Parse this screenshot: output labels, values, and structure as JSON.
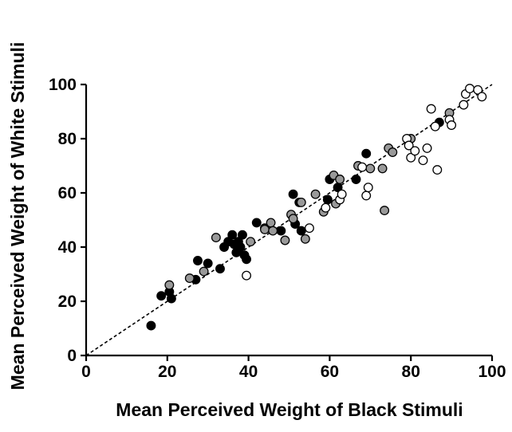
{
  "chart_data": {
    "type": "scatter",
    "xlabel": "Mean Perceived Weight of Black Stimuli",
    "ylabel": "Mean Perceived Weight of White Stimuli",
    "xlim": [
      0,
      100
    ],
    "ylim": [
      0,
      100
    ],
    "xticks": [
      0,
      20,
      40,
      60,
      80,
      100
    ],
    "yticks": [
      0,
      20,
      40,
      60,
      80,
      100
    ],
    "grid": false,
    "legend": "none",
    "reference_line": {
      "style": "dashed",
      "from": [
        0,
        0
      ],
      "to": [
        100,
        100
      ],
      "color": "#000000"
    },
    "series": [
      {
        "fill": "#000000",
        "points": [
          [
            16,
            11
          ],
          [
            18.5,
            22
          ],
          [
            20.5,
            23.5
          ],
          [
            21,
            21
          ],
          [
            27,
            28
          ],
          [
            27.5,
            35
          ],
          [
            30,
            34
          ],
          [
            33,
            32
          ],
          [
            34,
            40
          ],
          [
            35,
            42
          ],
          [
            36,
            44.5
          ],
          [
            36.5,
            41
          ],
          [
            37,
            38
          ],
          [
            37.5,
            42
          ],
          [
            38,
            40
          ],
          [
            38.5,
            44.5
          ],
          [
            39,
            37
          ],
          [
            39.5,
            35.5
          ],
          [
            42,
            49
          ],
          [
            44,
            47
          ],
          [
            48,
            46
          ],
          [
            51,
            59.5
          ],
          [
            51.5,
            48.5
          ],
          [
            52.5,
            56.5
          ],
          [
            53,
            46
          ],
          [
            59.5,
            57.5
          ],
          [
            60,
            65
          ],
          [
            62,
            62
          ],
          [
            66.5,
            65
          ],
          [
            69,
            74.5
          ],
          [
            87,
            86
          ]
        ]
      },
      {
        "fill": "#999999",
        "points": [
          [
            20.5,
            26
          ],
          [
            25.5,
            28.5
          ],
          [
            29,
            31
          ],
          [
            32,
            43.5
          ],
          [
            40.5,
            42
          ],
          [
            44,
            46.5
          ],
          [
            45.5,
            49
          ],
          [
            46,
            46
          ],
          [
            49,
            42.5
          ],
          [
            50.5,
            52
          ],
          [
            51,
            50.5
          ],
          [
            53,
            56.5
          ],
          [
            54,
            43
          ],
          [
            56.5,
            59.5
          ],
          [
            58.5,
            53
          ],
          [
            61,
            66.5
          ],
          [
            61.5,
            56
          ],
          [
            62.5,
            65
          ],
          [
            67,
            70
          ],
          [
            70,
            69
          ],
          [
            73,
            69
          ],
          [
            74.5,
            76.5
          ],
          [
            75.5,
            75
          ],
          [
            73.5,
            53.5
          ],
          [
            80,
            80
          ],
          [
            89.5,
            89.5
          ]
        ]
      },
      {
        "fill": "#ffffff",
        "points": [
          [
            39.5,
            29.5
          ],
          [
            55,
            47
          ],
          [
            59,
            54.5
          ],
          [
            62.5,
            57.5
          ],
          [
            63,
            59.5
          ],
          [
            68,
            69.5
          ],
          [
            69,
            59
          ],
          [
            69.5,
            62
          ],
          [
            79,
            80
          ],
          [
            79.5,
            77.5
          ],
          [
            80,
            73
          ],
          [
            81,
            75.5
          ],
          [
            83,
            72
          ],
          [
            84,
            76.5
          ],
          [
            85,
            91
          ],
          [
            86,
            84.5
          ],
          [
            86.5,
            68.5
          ],
          [
            89.5,
            87
          ],
          [
            90,
            85
          ],
          [
            93,
            92.5
          ],
          [
            93.5,
            96.5
          ],
          [
            94.5,
            98.5
          ],
          [
            96.5,
            98
          ],
          [
            97.5,
            95.5
          ]
        ]
      }
    ]
  }
}
